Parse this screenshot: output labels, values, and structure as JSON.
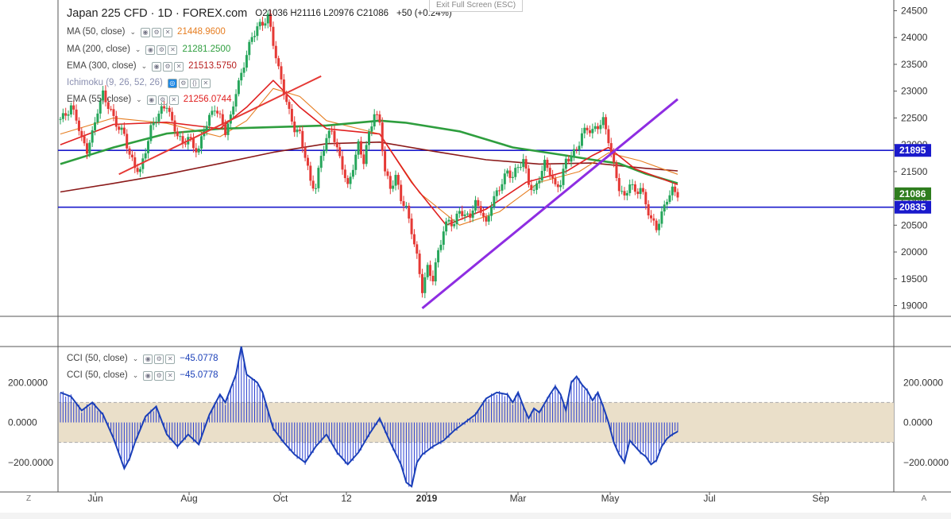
{
  "header": {
    "symbol": "Japan 225 CFD · 1D · FOREX.com",
    "ohlc": "O21036  H21116  L20976  C21086",
    "change": "+50 (+0.24%)",
    "exit_fullscreen": "Exit Full Screen (ESC)"
  },
  "indicators": [
    {
      "name": "MA (50, close)",
      "value": "21448.9600",
      "color": "#e67e22"
    },
    {
      "name": "MA (200, close)",
      "value": "21281.2500",
      "color": "#2e9e3e"
    },
    {
      "name": "EMA (300, close)",
      "value": "21513.5750",
      "color": "#8b1a1a"
    },
    {
      "name": "Ichimoku (9, 26, 52, 26)",
      "value": "",
      "color": "#1e88e5"
    },
    {
      "name": "EMA (55, close)",
      "value": "21256.0744",
      "color": "#e02020"
    }
  ],
  "oscillator_legend": [
    {
      "name": "CCI (50, close)",
      "value": "−45.0778"
    },
    {
      "name": "CCI (50, close)",
      "value": "−45.0778"
    }
  ],
  "corners": {
    "left": "Z",
    "right": "A"
  },
  "colors": {
    "up": "#26a65b",
    "down": "#e53935",
    "hline": "#1a1acc",
    "trend_red": "#e53935",
    "trend_purple": "#8e2de2",
    "cci_line": "#1a3fb8",
    "cci_band": "#eadfc9"
  },
  "chart_data": {
    "type": "line",
    "instrument": "Japan 225 CFD",
    "x_labels": [
      "Jun",
      "Aug",
      "Oct",
      "12",
      "2019",
      "Mar",
      "May",
      "Jul",
      "Sep"
    ],
    "price_axis": {
      "ylim": [
        18800,
        24700
      ],
      "ticks": [
        19000,
        19500,
        20000,
        20500,
        21000,
        21500,
        22000,
        22500,
        23000,
        23500,
        24000,
        24500
      ]
    },
    "horizontal_lines": [
      {
        "value": 21895,
        "label": "21895"
      },
      {
        "value": 20835,
        "label": "20835"
      }
    ],
    "last_price": {
      "value": 21086,
      "label": "21086"
    },
    "price_series": [
      {
        "name": "Close",
        "points": [
          [
            0,
            22480
          ],
          [
            2,
            22560
          ],
          [
            4,
            22700
          ],
          [
            6,
            22500
          ],
          [
            8,
            22100
          ],
          [
            10,
            21900
          ],
          [
            12,
            22200
          ],
          [
            14,
            22650
          ],
          [
            16,
            22950
          ],
          [
            18,
            22720
          ],
          [
            20,
            22500
          ],
          [
            22,
            22300
          ],
          [
            24,
            22200
          ],
          [
            26,
            21800
          ],
          [
            28,
            21600
          ],
          [
            30,
            21500
          ],
          [
            32,
            21900
          ],
          [
            34,
            22300
          ],
          [
            36,
            22500
          ],
          [
            38,
            22650
          ],
          [
            40,
            22750
          ],
          [
            42,
            22400
          ],
          [
            44,
            22200
          ],
          [
            46,
            22000
          ],
          [
            48,
            22150
          ],
          [
            50,
            21950
          ],
          [
            52,
            21900
          ],
          [
            54,
            22300
          ],
          [
            56,
            22500
          ],
          [
            58,
            22700
          ],
          [
            60,
            22500
          ],
          [
            62,
            22250
          ],
          [
            64,
            22500
          ],
          [
            66,
            23000
          ],
          [
            68,
            23300
          ],
          [
            70,
            23700
          ],
          [
            72,
            24000
          ],
          [
            74,
            24200
          ],
          [
            76,
            24250
          ],
          [
            78,
            24400
          ],
          [
            80,
            23900
          ],
          [
            82,
            23400
          ],
          [
            84,
            23000
          ],
          [
            86,
            22600
          ],
          [
            88,
            22300
          ],
          [
            90,
            22200
          ],
          [
            92,
            21800
          ],
          [
            94,
            21300
          ],
          [
            96,
            21200
          ],
          [
            98,
            21800
          ],
          [
            100,
            22100
          ],
          [
            102,
            22300
          ],
          [
            104,
            21900
          ],
          [
            106,
            21600
          ],
          [
            108,
            21200
          ],
          [
            110,
            21600
          ],
          [
            112,
            22000
          ],
          [
            114,
            21700
          ],
          [
            116,
            22200
          ],
          [
            118,
            22600
          ],
          [
            120,
            22400
          ],
          [
            122,
            21500
          ],
          [
            124,
            21200
          ],
          [
            126,
            21400
          ],
          [
            128,
            21000
          ],
          [
            130,
            20800
          ],
          [
            132,
            20400
          ],
          [
            134,
            19900
          ],
          [
            136,
            19300
          ],
          [
            138,
            19700
          ],
          [
            140,
            19500
          ],
          [
            142,
            20000
          ],
          [
            144,
            20400
          ],
          [
            146,
            20600
          ],
          [
            148,
            20500
          ],
          [
            150,
            20800
          ],
          [
            152,
            20650
          ],
          [
            154,
            20700
          ],
          [
            156,
            20900
          ],
          [
            158,
            20800
          ],
          [
            160,
            20500
          ],
          [
            162,
            20900
          ],
          [
            164,
            21100
          ],
          [
            166,
            21300
          ],
          [
            168,
            21500
          ],
          [
            170,
            21400
          ],
          [
            172,
            21600
          ],
          [
            174,
            21700
          ],
          [
            176,
            21300
          ],
          [
            178,
            21100
          ],
          [
            180,
            21400
          ],
          [
            182,
            21650
          ],
          [
            184,
            21500
          ],
          [
            186,
            21200
          ],
          [
            188,
            21300
          ],
          [
            190,
            21700
          ],
          [
            192,
            21800
          ],
          [
            194,
            21900
          ],
          [
            196,
            22200
          ],
          [
            198,
            22300
          ],
          [
            200,
            22250
          ],
          [
            202,
            22350
          ],
          [
            204,
            22450
          ],
          [
            206,
            22100
          ],
          [
            208,
            21600
          ],
          [
            210,
            21200
          ],
          [
            212,
            21000
          ],
          [
            214,
            21300
          ],
          [
            216,
            21100
          ],
          [
            218,
            21200
          ],
          [
            220,
            20900
          ],
          [
            222,
            20600
          ],
          [
            224,
            20450
          ],
          [
            226,
            20700
          ],
          [
            228,
            21000
          ],
          [
            230,
            21150
          ],
          [
            232,
            21086
          ]
        ]
      },
      {
        "name": "MA (200, close)",
        "color": "#2e9e3e",
        "points": [
          [
            0,
            21640
          ],
          [
            20,
            21950
          ],
          [
            40,
            22210
          ],
          [
            60,
            22300
          ],
          [
            80,
            22330
          ],
          [
            100,
            22360
          ],
          [
            120,
            22450
          ],
          [
            130,
            22410
          ],
          [
            150,
            22250
          ],
          [
            170,
            21950
          ],
          [
            190,
            21800
          ],
          [
            200,
            21720
          ],
          [
            210,
            21650
          ],
          [
            220,
            21460
          ],
          [
            232,
            21281
          ]
        ]
      },
      {
        "name": "EMA (300, close)",
        "color": "#8b1a1a",
        "points": [
          [
            0,
            21120
          ],
          [
            20,
            21280
          ],
          [
            40,
            21450
          ],
          [
            60,
            21650
          ],
          [
            80,
            21860
          ],
          [
            100,
            22020
          ],
          [
            120,
            22050
          ],
          [
            140,
            21880
          ],
          [
            160,
            21720
          ],
          [
            180,
            21640
          ],
          [
            200,
            21660
          ],
          [
            220,
            21560
          ],
          [
            232,
            21513
          ]
        ]
      },
      {
        "name": "EMA (55, close)",
        "color": "#e02020",
        "points": [
          [
            0,
            22000
          ],
          [
            20,
            22380
          ],
          [
            40,
            22420
          ],
          [
            60,
            22300
          ],
          [
            70,
            22700
          ],
          [
            80,
            23200
          ],
          [
            90,
            22700
          ],
          [
            100,
            22300
          ],
          [
            120,
            22200
          ],
          [
            132,
            21300
          ],
          [
            145,
            20500
          ],
          [
            160,
            20800
          ],
          [
            175,
            21300
          ],
          [
            190,
            21500
          ],
          [
            200,
            21800
          ],
          [
            206,
            21950
          ],
          [
            216,
            21550
          ],
          [
            232,
            21256
          ]
        ]
      },
      {
        "name": "MA (50, close)",
        "color": "#e67e22",
        "points": [
          [
            0,
            22200
          ],
          [
            20,
            22500
          ],
          [
            40,
            22400
          ],
          [
            60,
            22150
          ],
          [
            70,
            22450
          ],
          [
            80,
            23050
          ],
          [
            90,
            22900
          ],
          [
            100,
            22450
          ],
          [
            120,
            22200
          ],
          [
            135,
            21100
          ],
          [
            150,
            20500
          ],
          [
            165,
            20750
          ],
          [
            180,
            21300
          ],
          [
            195,
            21500
          ],
          [
            206,
            21850
          ],
          [
            218,
            21700
          ],
          [
            232,
            21449
          ]
        ]
      }
    ],
    "trendlines": [
      {
        "color": "#e53935",
        "from": [
          22,
          21450
        ],
        "to": [
          98,
          23280
        ]
      },
      {
        "color": "#8e2de2",
        "from": [
          136,
          18950
        ],
        "to": [
          232,
          22850
        ]
      }
    ],
    "cci": {
      "name": "CCI (50, close)",
      "ylim": [
        -320,
        380
      ],
      "ticks": [
        -200,
        0,
        200
      ],
      "band": [
        -100,
        100
      ],
      "points": [
        [
          0,
          150
        ],
        [
          4,
          130
        ],
        [
          8,
          60
        ],
        [
          12,
          100
        ],
        [
          16,
          40
        ],
        [
          20,
          -80
        ],
        [
          24,
          -230
        ],
        [
          26,
          -180
        ],
        [
          28,
          -100
        ],
        [
          32,
          30
        ],
        [
          36,
          80
        ],
        [
          40,
          -60
        ],
        [
          44,
          -120
        ],
        [
          48,
          -60
        ],
        [
          52,
          -110
        ],
        [
          56,
          40
        ],
        [
          60,
          140
        ],
        [
          62,
          100
        ],
        [
          66,
          240
        ],
        [
          68,
          380
        ],
        [
          70,
          240
        ],
        [
          74,
          200
        ],
        [
          76,
          150
        ],
        [
          78,
          60
        ],
        [
          80,
          -30
        ],
        [
          84,
          -100
        ],
        [
          88,
          -160
        ],
        [
          92,
          -200
        ],
        [
          96,
          -120
        ],
        [
          100,
          -60
        ],
        [
          104,
          -150
        ],
        [
          108,
          -210
        ],
        [
          112,
          -150
        ],
        [
          116,
          -60
        ],
        [
          120,
          20
        ],
        [
          124,
          -100
        ],
        [
          128,
          -210
        ],
        [
          130,
          -300
        ],
        [
          132,
          -320
        ],
        [
          134,
          -200
        ],
        [
          136,
          -160
        ],
        [
          140,
          -120
        ],
        [
          144,
          -90
        ],
        [
          148,
          -40
        ],
        [
          152,
          0
        ],
        [
          156,
          40
        ],
        [
          160,
          120
        ],
        [
          164,
          150
        ],
        [
          168,
          140
        ],
        [
          170,
          100
        ],
        [
          172,
          150
        ],
        [
          174,
          80
        ],
        [
          176,
          20
        ],
        [
          178,
          70
        ],
        [
          180,
          50
        ],
        [
          184,
          140
        ],
        [
          186,
          180
        ],
        [
          188,
          140
        ],
        [
          190,
          60
        ],
        [
          192,
          200
        ],
        [
          194,
          230
        ],
        [
          196,
          190
        ],
        [
          198,
          160
        ],
        [
          200,
          110
        ],
        [
          202,
          150
        ],
        [
          204,
          80
        ],
        [
          206,
          0
        ],
        [
          208,
          -100
        ],
        [
          210,
          -160
        ],
        [
          212,
          -200
        ],
        [
          214,
          -90
        ],
        [
          216,
          -120
        ],
        [
          218,
          -150
        ],
        [
          220,
          -170
        ],
        [
          222,
          -210
        ],
        [
          224,
          -190
        ],
        [
          226,
          -120
        ],
        [
          228,
          -80
        ],
        [
          230,
          -60
        ],
        [
          232,
          -45
        ]
      ]
    }
  }
}
